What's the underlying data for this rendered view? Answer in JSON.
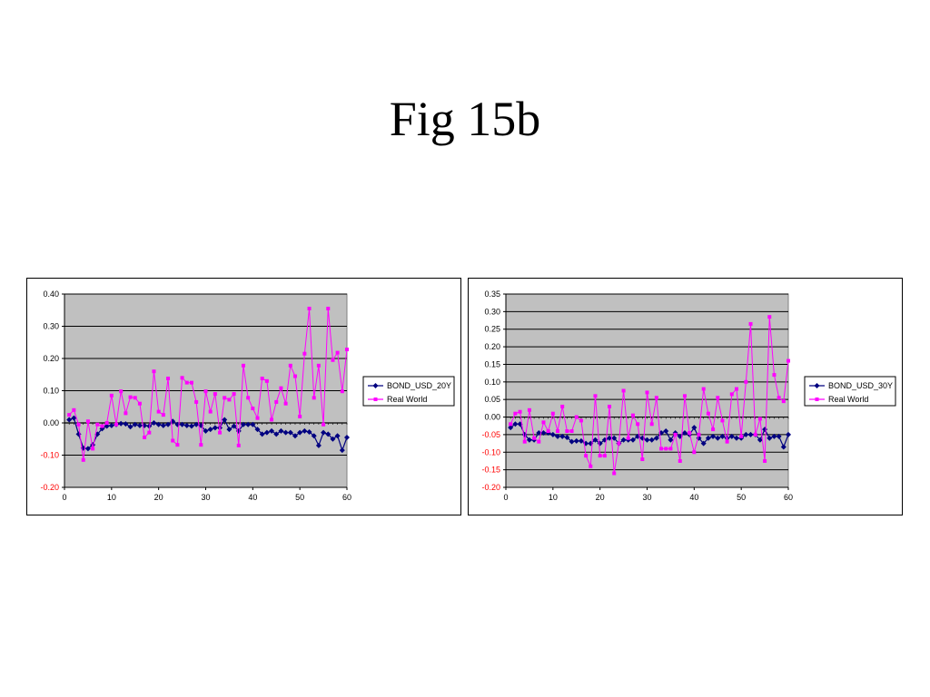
{
  "slide": {
    "title": "Fig 15b"
  },
  "colors": {
    "plot_bg": "#c0c0c0",
    "bond": "#000080",
    "real": "#ff00ff",
    "neg_tick": "#ff0000"
  },
  "chart_data": [
    {
      "type": "line",
      "title": "",
      "xlabel": "",
      "ylabel": "",
      "xlim": [
        0,
        60
      ],
      "ylim": [
        -0.2,
        0.4
      ],
      "xticks": [
        "0",
        "10",
        "20",
        "30",
        "40",
        "50",
        "60"
      ],
      "yticks": [
        "0.40",
        "0.30",
        "0.20",
        "0.10",
        "0.00",
        "-0.10",
        "-0.20"
      ],
      "grid": true,
      "legend": "right",
      "series": [
        {
          "name": "BOND_USD_20Y",
          "marker": "diamond",
          "values": [
            0.01,
            0.015,
            -0.035,
            -0.078,
            -0.08,
            -0.068,
            -0.035,
            -0.018,
            -0.01,
            -0.008,
            -0.005,
            -0.002,
            -0.003,
            -0.012,
            -0.005,
            -0.008,
            -0.008,
            -0.01,
            0.0,
            -0.005,
            -0.008,
            -0.005,
            0.005,
            -0.005,
            -0.005,
            -0.008,
            -0.01,
            -0.005,
            -0.008,
            -0.025,
            -0.02,
            -0.015,
            -0.015,
            0.01,
            -0.02,
            -0.01,
            -0.025,
            -0.005,
            -0.005,
            -0.005,
            -0.02,
            -0.035,
            -0.03,
            -0.025,
            -0.035,
            -0.025,
            -0.03,
            -0.03,
            -0.04,
            -0.03,
            -0.025,
            -0.028,
            -0.04,
            -0.07,
            -0.03,
            -0.035,
            -0.05,
            -0.04,
            -0.085,
            -0.045
          ]
        },
        {
          "name": "Real World",
          "marker": "square",
          "values": [
            0.025,
            0.04,
            -0.005,
            -0.115,
            0.005,
            -0.08,
            -0.005,
            -0.01,
            0.0,
            0.085,
            -0.005,
            0.098,
            0.03,
            0.08,
            0.078,
            0.06,
            -0.045,
            -0.03,
            0.16,
            0.035,
            0.025,
            0.138,
            -0.055,
            -0.068,
            0.14,
            0.125,
            0.125,
            0.065,
            -0.068,
            0.098,
            0.035,
            0.09,
            -0.03,
            0.078,
            0.072,
            0.09,
            -0.07,
            0.178,
            0.078,
            0.045,
            0.015,
            0.138,
            0.13,
            0.01,
            0.065,
            0.108,
            0.06,
            0.178,
            0.145,
            0.02,
            0.215,
            0.355,
            0.078,
            0.178,
            -0.005,
            0.355,
            0.195,
            0.218,
            0.098,
            0.228
          ]
        }
      ]
    },
    {
      "type": "line",
      "title": "",
      "xlabel": "",
      "ylabel": "",
      "xlim": [
        0,
        60
      ],
      "ylim": [
        -0.2,
        0.35
      ],
      "xticks": [
        "0",
        "10",
        "20",
        "30",
        "40",
        "50",
        "60"
      ],
      "yticks": [
        "0.35",
        "0.30",
        "0.25",
        "0.20",
        "0.15",
        "0.10",
        "0.05",
        "0.00",
        "-0.05",
        "-0.10",
        "-0.15",
        "-0.20"
      ],
      "grid": true,
      "legend": "right",
      "series": [
        {
          "name": "BOND_USD_30Y",
          "marker": "diamond",
          "values": [
            -0.03,
            -0.02,
            -0.02,
            -0.05,
            -0.065,
            -0.065,
            -0.045,
            -0.045,
            -0.045,
            -0.05,
            -0.055,
            -0.055,
            -0.058,
            -0.07,
            -0.068,
            -0.068,
            -0.075,
            -0.075,
            -0.065,
            -0.075,
            -0.065,
            -0.06,
            -0.06,
            -0.075,
            -0.065,
            -0.065,
            -0.065,
            -0.055,
            -0.06,
            -0.065,
            -0.065,
            -0.06,
            -0.045,
            -0.04,
            -0.065,
            -0.045,
            -0.055,
            -0.045,
            -0.05,
            -0.03,
            -0.06,
            -0.075,
            -0.06,
            -0.055,
            -0.06,
            -0.055,
            -0.06,
            -0.055,
            -0.06,
            -0.06,
            -0.05,
            -0.05,
            -0.05,
            -0.065,
            -0.035,
            -0.06,
            -0.055,
            -0.055,
            -0.085,
            -0.05
          ]
        },
        {
          "name": "Real World",
          "marker": "square",
          "values": [
            -0.02,
            0.01,
            0.015,
            -0.07,
            0.02,
            -0.06,
            -0.07,
            -0.015,
            -0.04,
            0.01,
            -0.04,
            0.03,
            -0.04,
            -0.04,
            0.0,
            -0.01,
            -0.11,
            -0.14,
            0.06,
            -0.11,
            -0.11,
            0.03,
            -0.16,
            -0.075,
            0.075,
            -0.06,
            0.005,
            -0.02,
            -0.12,
            0.07,
            -0.02,
            0.055,
            -0.09,
            -0.09,
            -0.09,
            -0.05,
            -0.125,
            0.06,
            -0.045,
            -0.1,
            -0.05,
            0.08,
            0.01,
            -0.035,
            0.055,
            -0.01,
            -0.07,
            0.065,
            0.08,
            -0.055,
            0.1,
            0.265,
            -0.05,
            -0.005,
            -0.125,
            0.285,
            0.12,
            0.055,
            0.045,
            0.16
          ]
        }
      ]
    }
  ]
}
